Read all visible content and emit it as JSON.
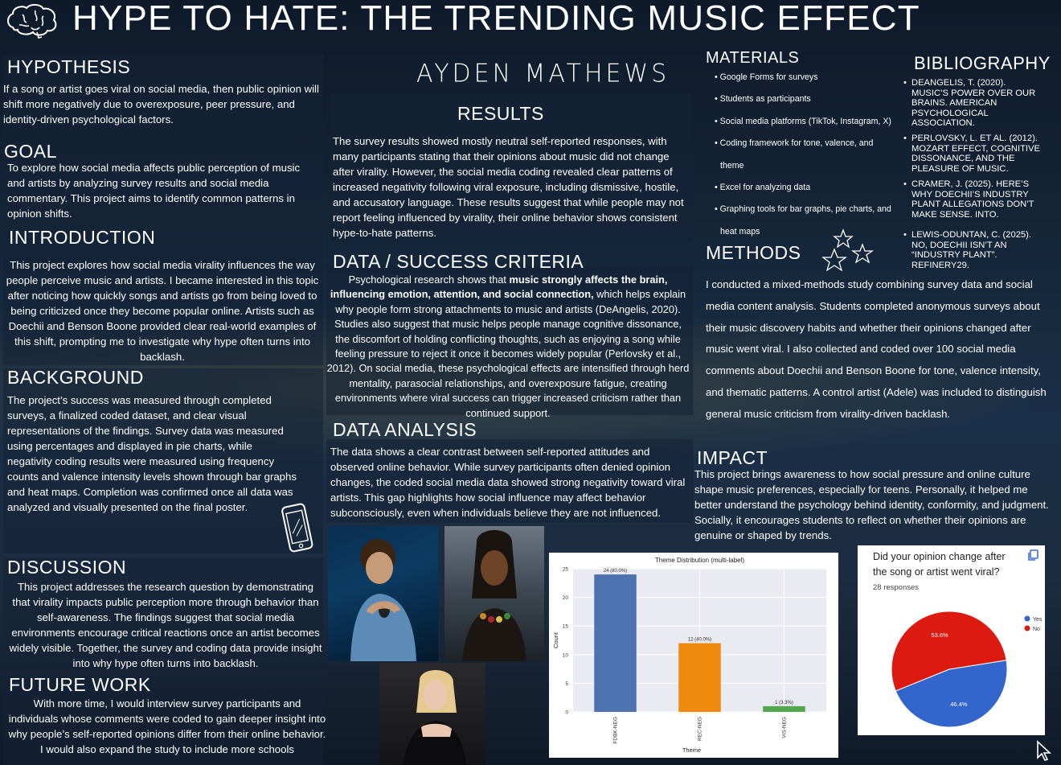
{
  "title": "HYPE TO HATE: THE TRENDING MUSIC EFFECT",
  "author": "AYDEN MATHEWS",
  "hypothesis": {
    "heading": "HYPOTHESIS",
    "text": "If a song or artist goes viral on social media, then public opinion will shift more negatively due to overexposure, peer pressure, and identity-driven psychological factors."
  },
  "goal": {
    "heading": "GOAL",
    "text": "To explore how social media affects public perception of music and artists by analyzing survey results and social media commentary. This project aims to identify common patterns in opinion shifts."
  },
  "introduction": {
    "heading": "INTRODUCTION",
    "text": "This project explores how social media virality influences the way people perceive music and artists. I became interested in this topic after noticing how quickly songs and artists go from being loved to being criticized once they become popular online. Artists such as Doechii and Benson Boone provided clear real-world examples of this shift, prompting me to investigate why hype often turns into backlash."
  },
  "background": {
    "heading": "BACKGROUND",
    "text": "The project’s success was measured through completed surveys, a finalized coded dataset, and clear visual representations of the findings. Survey data was measured using percentages and displayed in pie charts, while negativity coding results were measured using frequency counts and valence intensity levels shown through bar graphs and heat maps. Completion was confirmed once all data was analyzed and visually presented on the final poster."
  },
  "discussion": {
    "heading": "DISCUSSION",
    "text": "This project addresses the research question by demonstrating that virality impacts public perception more through behavior than self-awareness. The findings suggest that social media environments encourage critical reactions once an artist becomes widely visible. Together, the survey and coding data provide insight into why hype often turns into backlash."
  },
  "future_work": {
    "heading": "FUTURE WORK",
    "text": "With more time, I would interview survey participants and individuals whose comments were coded to gain deeper insight into why people’s self-reported opinions differ from their online behavior. I would also expand the study to include more schools"
  },
  "results": {
    "heading": "RESULTS",
    "text": "The survey results showed mostly neutral self-reported responses, with many participants stating that their opinions about music did not change after virality. However, the social media coding revealed clear patterns of increased negativity following viral exposure, including dismissive, hostile, and accusatory language. These results suggest that while people may not report feeling influenced by virality, their online behavior shows consistent hype-to-hate patterns."
  },
  "criteria": {
    "heading": "DATA / SUCCESS CRITERIA",
    "text_a": "Psychological research shows that ",
    "text_bold": "music strongly affects the brain, influencing emotion, attention, and social connection,",
    "text_b": " which helps explain why people form strong attachments to music and artists (DeAngelis, 2020). Studies also suggest that music helps people manage cognitive dissonance, the discomfort of holding conflicting thoughts, such as enjoying a song while feeling pressure to reject it once it becomes widely popular (Perlovsky et al., 2012). On social media, these psychological effects are intensified through herd mentality, parasocial relationships, and overexposure fatigue, creating environments where viral success can trigger increased criticism rather than continued support."
  },
  "analysis": {
    "heading": "DATA ANALYSIS",
    "text": "The data shows a clear contrast between self-reported attitudes and observed online behavior. While survey participants often denied opinion changes, the coded social media data showed strong negativity toward viral artists. This gap highlights how social influence may affect behavior subconsciously, even when individuals believe they are not influenced."
  },
  "materials": {
    "heading": "MATERIALS",
    "items": [
      "Google Forms for surveys",
      "Students as participants",
      "Social media platforms (TikTok, Instagram, X)",
      "Coding framework for tone, valence, and",
      "theme",
      "Excel for analyzing data",
      "Graphing tools for bar graphs, pie charts, and",
      "heat maps"
    ]
  },
  "bibliography": {
    "heading": "BIBLIOGRAPHY",
    "entries": [
      "DEANGELIS, T. (2020). MUSIC’S POWER OVER OUR BRAINS. AMERICAN PSYCHOLOGICAL ASSOCIATION.",
      "PERLOVSKY, L. ET AL. (2012). MOZART EFFECT, COGNITIVE DISSONANCE, AND THE PLEASURE OF MUSIC.",
      "CRAMER, J. (2025). HERE’S WHY DOECHII’S INDUSTRY PLANT ALLEGATIONS DON’T MAKE SENSE. INTO.",
      "LEWIS-ODUNTAN, C. (2025). NO, DOECHII ISN’T AN “INDUSTRY PLANT”. REFINERY29."
    ]
  },
  "methods": {
    "heading": "METHODS",
    "text": "I conducted a mixed-methods study combining survey data and social media content analysis. Students completed anonymous surveys about their music discovery habits and whether their opinions changed after music went viral. I also collected and coded over 100 social media comments about Doechii and Benson Boone for tone, valence intensity, and thematic patterns. A control artist (Adele) was included to distinguish general music criticism from virality-driven backlash."
  },
  "impact": {
    "heading": "IMPACT",
    "text": "This project brings awareness to how social pressure and online culture shape music preferences, especially for teens. Personally, it helped me better understand the psychology behind identity, conformity, and judgment. Socially, it encourages students to reflect on whether their opinions are genuine or shaped by trends."
  },
  "chart_data": [
    {
      "type": "bar",
      "title": "Theme Distribution (multi-label)",
      "xlabel": "Theme",
      "ylabel": "Count",
      "categories": [
        "FDBK-NEG",
        "REC-NEG",
        "VIS-NEG"
      ],
      "values": [
        24,
        12,
        1
      ],
      "value_labels": [
        "24 (80.0%)",
        "12 (40.0%)",
        "1 (3.3%)"
      ],
      "colors": [
        "#4c72b0",
        "#ee8a0e",
        "#52a84c"
      ],
      "ylim": [
        0,
        25
      ],
      "yticks": [
        0,
        5,
        10,
        15,
        20,
        25
      ],
      "grid": true
    },
    {
      "type": "pie",
      "title": "Did your opinion change after the song or artist went viral?",
      "subtitle": "28 responses",
      "labels": [
        "Yes",
        "No"
      ],
      "values": [
        46.4,
        53.6
      ],
      "value_labels": [
        "46.4%",
        "53.6%"
      ],
      "colors": [
        "#3366cc",
        "#dc1a0f"
      ],
      "legend": "right"
    }
  ]
}
